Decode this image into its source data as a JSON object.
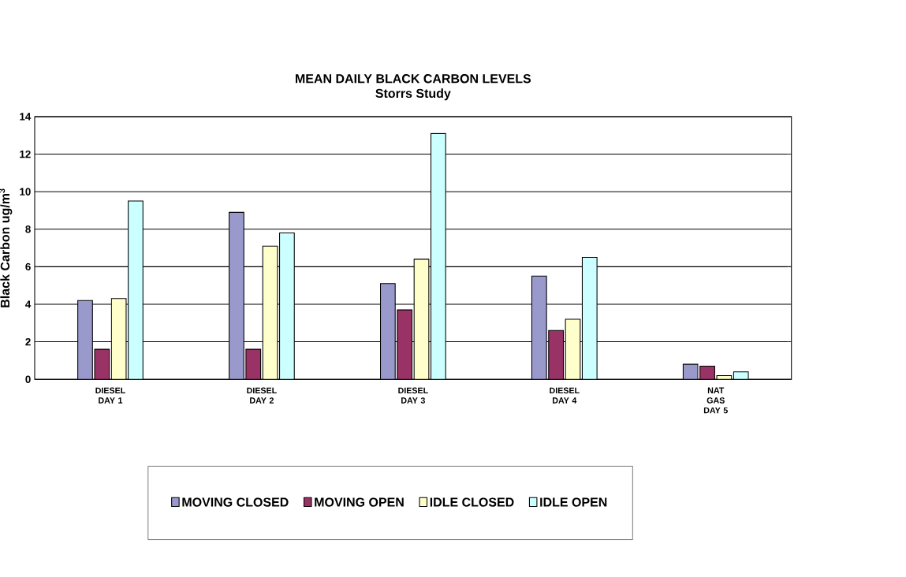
{
  "chart_data": {
    "type": "bar",
    "title": "MEAN DAILY BLACK CARBON LEVELS",
    "subtitle": "Storrs Study",
    "ylabel": "Black Carbon ug/m$^{3}$",
    "categories": [
      "DIESEL DAY 1",
      "DIESEL DAY 2",
      "DIESEL DAY 3",
      "DIESEL DAY 4",
      "NAT GAS DAY 5"
    ],
    "series": [
      {
        "name": "MOVING CLOSED",
        "color": "#9999cc",
        "values": [
          4.2,
          8.9,
          5.1,
          5.5,
          0.8
        ]
      },
      {
        "name": "MOVING  OPEN",
        "color": "#993366",
        "values": [
          1.6,
          1.6,
          3.7,
          2.6,
          0.7
        ]
      },
      {
        "name": "IDLE CLOSED",
        "color": "#ffffcc",
        "values": [
          4.3,
          7.1,
          6.4,
          3.2,
          0.2
        ]
      },
      {
        "name": "IDLE OPEN",
        "color": "#ccffff",
        "values": [
          9.5,
          7.8,
          13.1,
          6.5,
          0.4
        ]
      }
    ],
    "ylim": [
      0,
      14
    ],
    "yticks": [
      0,
      2,
      4,
      6,
      8,
      10,
      12,
      14
    ],
    "grid": "y",
    "legend": "bottom"
  }
}
